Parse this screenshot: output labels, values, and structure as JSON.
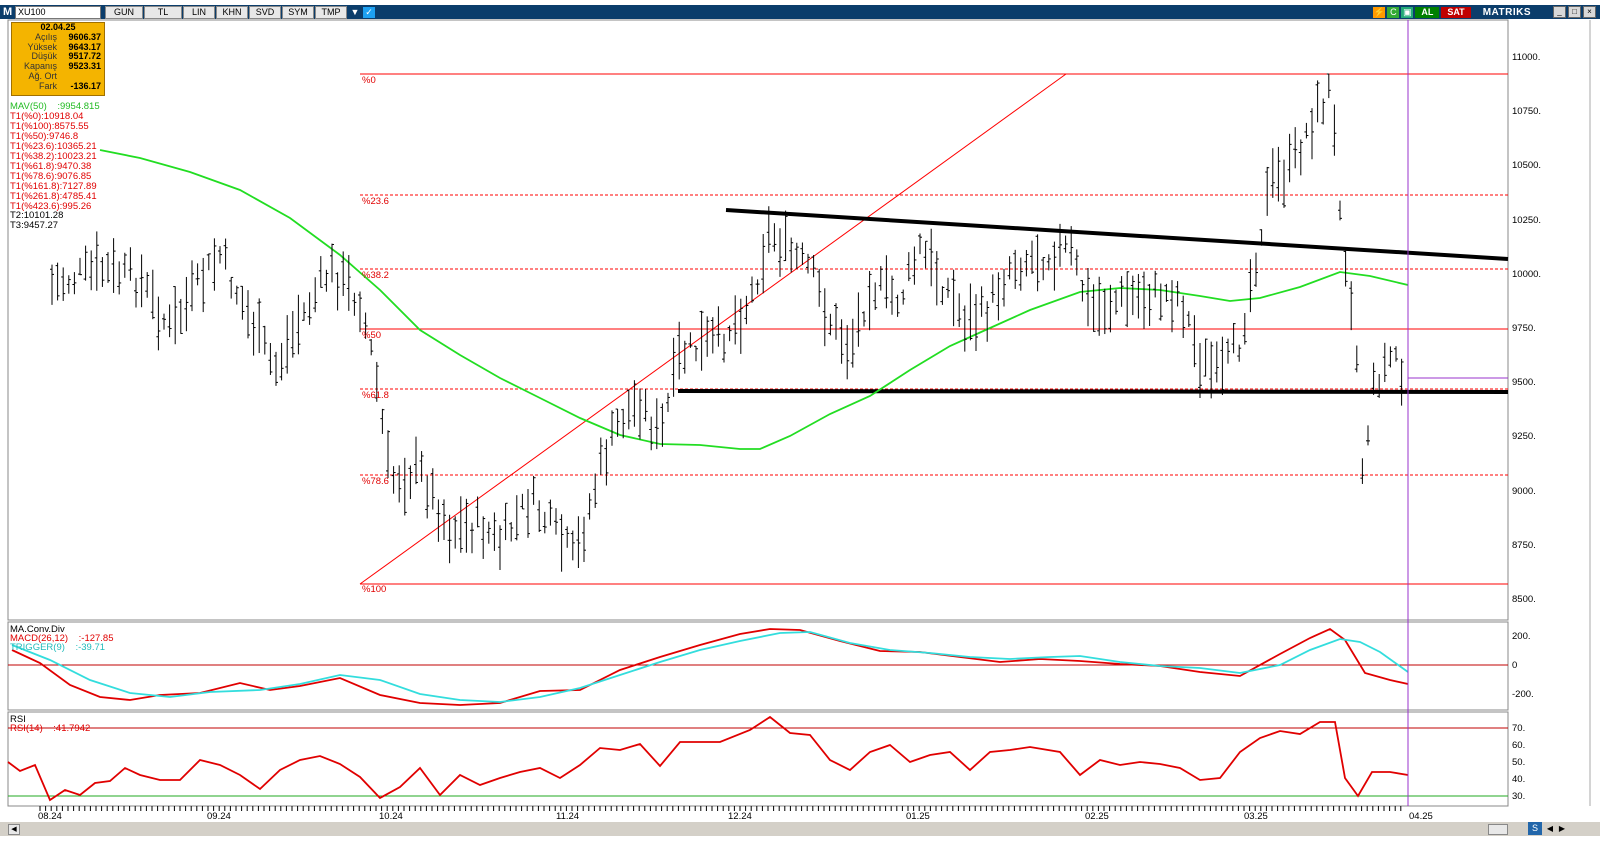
{
  "toolbar": {
    "logo": "M",
    "symbol": "XU100",
    "buttons": [
      "GUN",
      "TL",
      "LIN",
      "KHN",
      "SVD",
      "SYM",
      "TMP"
    ],
    "buy_label": "AL",
    "sell_label": "SAT",
    "brand": "MATRIKS"
  },
  "infobox": {
    "date": "02.04.25",
    "rows": [
      {
        "label": "Açılış",
        "value": "9606.37"
      },
      {
        "label": "Yüksek",
        "value": "9643.17"
      },
      {
        "label": "Düşük",
        "value": "9517.72"
      },
      {
        "label": "Kapanış",
        "value": "9523.31"
      },
      {
        "label": "Ağ. Ort",
        "value": ""
      },
      {
        "label": "Fark",
        "value": "-136.17"
      }
    ]
  },
  "indicators": {
    "mav_name": "MAV(50)",
    "mav_value": ":9954.815",
    "fib_lines": [
      "T1(%0):10918.04",
      "T1(%100):8575.55",
      "T1(%50):9746.8",
      "T1(%23.6):10365.21",
      "T1(%38.2):10023.21",
      "T1(%61.8):9470.38",
      "T1(%78.6):9076.85",
      "T1(%161.8):7127.89",
      "T1(%261.8):4785.41",
      "T1(%423.6):995.26"
    ],
    "t2": "T2:10101.28",
    "t3": "T3:9457.27"
  },
  "fib_labels": [
    "%0",
    "%23.6",
    "%38.2",
    "%50",
    "%61.8",
    "%78.6",
    "%100"
  ],
  "price_axis": [
    "11000.",
    "10750.",
    "10500.",
    "10250.",
    "10000.",
    "9750.",
    "9500.",
    "9250.",
    "9000.",
    "8750.",
    "8500."
  ],
  "macd": {
    "title": "MA.Conv.Div",
    "macd_label": "MACD(26,12)",
    "macd_value": ":-127.85",
    "trigger_label": "TRIGGER(9)",
    "trigger_value": ":-39.71",
    "axis": [
      "200.",
      "0",
      "-200."
    ]
  },
  "rsi": {
    "title": "RSI",
    "rsi_label": "RSI(14)",
    "rsi_value": ":41.7942",
    "axis": [
      "70.",
      "60.",
      "50.",
      "40.",
      "30."
    ]
  },
  "dates": [
    "08.24",
    "09.24",
    "10.24",
    "11.24",
    "12.24",
    "01.25",
    "02.25",
    "03.25",
    "04.25"
  ],
  "colors": {
    "toolbar": "#0b3d6b",
    "infobox": "#f4b400",
    "fib": "#ff0000",
    "mav": "#22dd22",
    "macd": "#e00000",
    "trigger": "#33dddd",
    "cursor": "#9933cc"
  },
  "chart_data": {
    "type": "bar",
    "series": [
      {
        "name": "MAV(50)",
        "x": [
          "08.24",
          "09.24",
          "10.24",
          "11.24",
          "12.24",
          "01.25",
          "02.25",
          "03.25",
          "04.25"
        ],
        "values": [
          10580,
          10250,
          9700,
          9250,
          9200,
          9600,
          9950,
          9900,
          9960
        ]
      },
      {
        "name": "MACD(26,12)",
        "x": [
          "08.24",
          "09.24",
          "10.24",
          "11.24",
          "12.24",
          "01.25",
          "02.25",
          "03.25",
          "04.25"
        ],
        "values": [
          40,
          -210,
          -190,
          -250,
          230,
          100,
          60,
          -30,
          -128
        ]
      },
      {
        "name": "TRIGGER(9)",
        "x": [
          "08.24",
          "09.24",
          "10.24",
          "11.24",
          "12.24",
          "01.25",
          "02.25",
          "03.25",
          "04.25"
        ],
        "values": [
          120,
          -190,
          -180,
          -240,
          180,
          90,
          70,
          -20,
          -40
        ]
      },
      {
        "name": "RSI(14)",
        "x": [
          "08.24",
          "09.24",
          "10.24",
          "11.24",
          "12.24",
          "01.25",
          "02.25",
          "03.25",
          "04.25"
        ],
        "values": [
          50,
          35,
          45,
          40,
          75,
          55,
          50,
          70,
          41.8
        ]
      }
    ],
    "price_ylim": [
      8400,
      11150
    ],
    "last_ohlc": {
      "date": "02.04.25",
      "open": 9606.37,
      "high": 9643.17,
      "low": 9517.72,
      "close": 9523.31
    },
    "fibonacci": {
      "%0": 10918.04,
      "%23.6": 10365.21,
      "%38.2": 10023.21,
      "%50": 9746.8,
      "%61.8": 9470.38,
      "%78.6": 9076.85,
      "%100": 8575.55
    },
    "grid": false
  }
}
